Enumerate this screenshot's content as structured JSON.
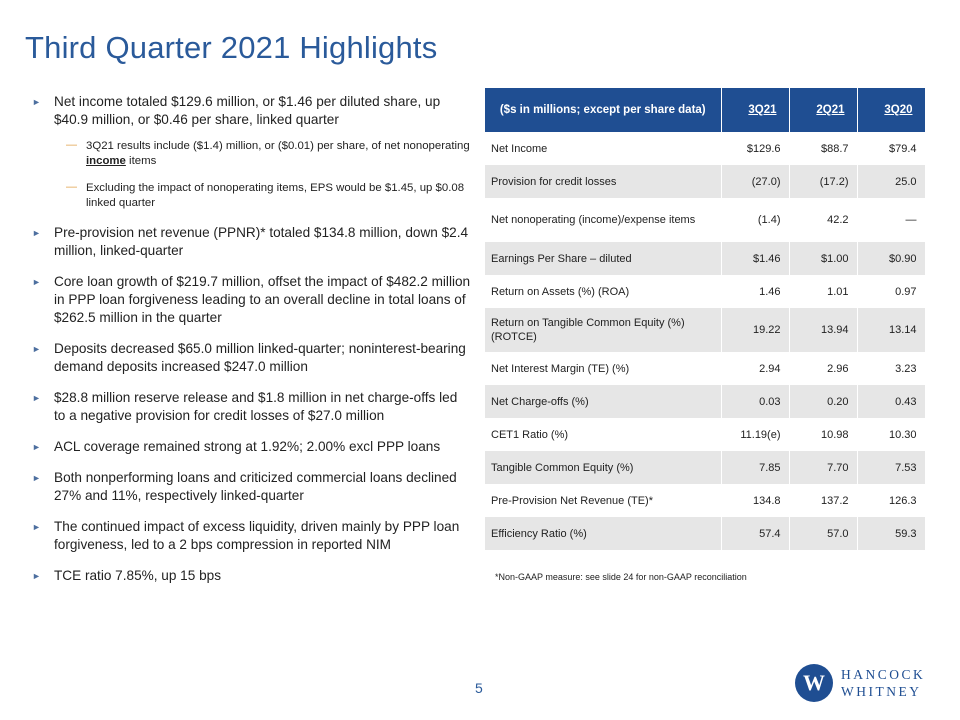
{
  "title": "Third Quarter 2021 Highlights",
  "bullets": [
    {
      "text": "Net income totaled $129.6 million, or $1.46 per diluted share, up $40.9 million, or $0.46 per share, linked quarter"
    },
    {
      "text": "Pre-provision net revenue (PPNR)* totaled $134.8 million, down $2.4 million, linked-quarter"
    },
    {
      "text": "Core loan growth of $219.7 million, offset the impact of $482.2 million in PPP loan forgiveness leading to an overall decline in total loans of $262.5 million in the quarter"
    },
    {
      "text": "Deposits decreased $65.0 million linked-quarter; noninterest-bearing demand deposits increased $247.0 million"
    },
    {
      "text": "$28.8 million reserve release and $1.8 million in net charge-offs led to a negative provision for credit losses of $27.0 million"
    },
    {
      "text": "ACL coverage remained strong at 1.92%;  2.00% excl PPP loans"
    },
    {
      "text": "Both nonperforming loans and criticized commercial loans declined 27% and 11%, respectively linked-quarter"
    },
    {
      "text": "The continued impact of excess liquidity, driven mainly by PPP loan forgiveness, led to a 2 bps compression in reported NIM"
    },
    {
      "text": "TCE ratio 7.85%, up 15 bps"
    }
  ],
  "subbullets": {
    "sub1_pre": "3Q21 results include ($1.4) million, or ($0.01) per share, of net nonoperating ",
    "sub1_bold": "income",
    "sub1_post": " items",
    "sub2": "Excluding the impact of nonoperating items, EPS would be $1.45, up $0.08 linked quarter"
  },
  "table": {
    "header_label": "($s in millions; except per share data)",
    "periods": [
      "3Q21",
      "2Q21",
      "3Q20"
    ],
    "rows": [
      {
        "label": "Net Income",
        "values": [
          "$129.6",
          "$88.7",
          "$79.4"
        ]
      },
      {
        "label": "Provision for credit losses",
        "values": [
          "(27.0)",
          "(17.2)",
          "25.0"
        ]
      },
      {
        "label": "Net nonoperating (income)/expense items",
        "values": [
          "(1.4)",
          "42.2",
          "—"
        ]
      },
      {
        "label": "Earnings Per Share – diluted",
        "values": [
          "$1.46",
          "$1.00",
          "$0.90"
        ]
      },
      {
        "label": "Return on Assets (%) (ROA)",
        "values": [
          "1.46",
          "1.01",
          "0.97"
        ]
      },
      {
        "label": "Return on Tangible Common Equity (%) (ROTCE)",
        "values": [
          "19.22",
          "13.94",
          "13.14"
        ]
      },
      {
        "label": "Net Interest Margin (TE) (%)",
        "values": [
          "2.94",
          "2.96",
          "3.23"
        ]
      },
      {
        "label": "Net Charge-offs (%)",
        "values": [
          "0.03",
          "0.20",
          "0.43"
        ]
      },
      {
        "label": "CET1 Ratio (%)",
        "values": [
          "11.19(e)",
          "10.98",
          "10.30"
        ]
      },
      {
        "label": "Tangible Common Equity (%)",
        "values": [
          "7.85",
          "7.70",
          "7.53"
        ]
      },
      {
        "label": "Pre-Provision Net Revenue (TE)*",
        "values": [
          "134.8",
          "137.2",
          "126.3"
        ]
      },
      {
        "label": "Efficiency Ratio (%)",
        "values": [
          "57.4",
          "57.0",
          "59.3"
        ]
      }
    ]
  },
  "footnote": "*Non-GAAP measure: see slide 24 for non-GAAP reconciliation",
  "page_number": "5",
  "logo": {
    "mark": "W",
    "line1": "HANCOCK",
    "line2": "WHITNEY"
  },
  "colors": {
    "brand_blue": "#1f4e92",
    "title_blue": "#2a5a9a",
    "row_shade": "#e6e6e6",
    "sub_dash": "#e0a24a"
  }
}
